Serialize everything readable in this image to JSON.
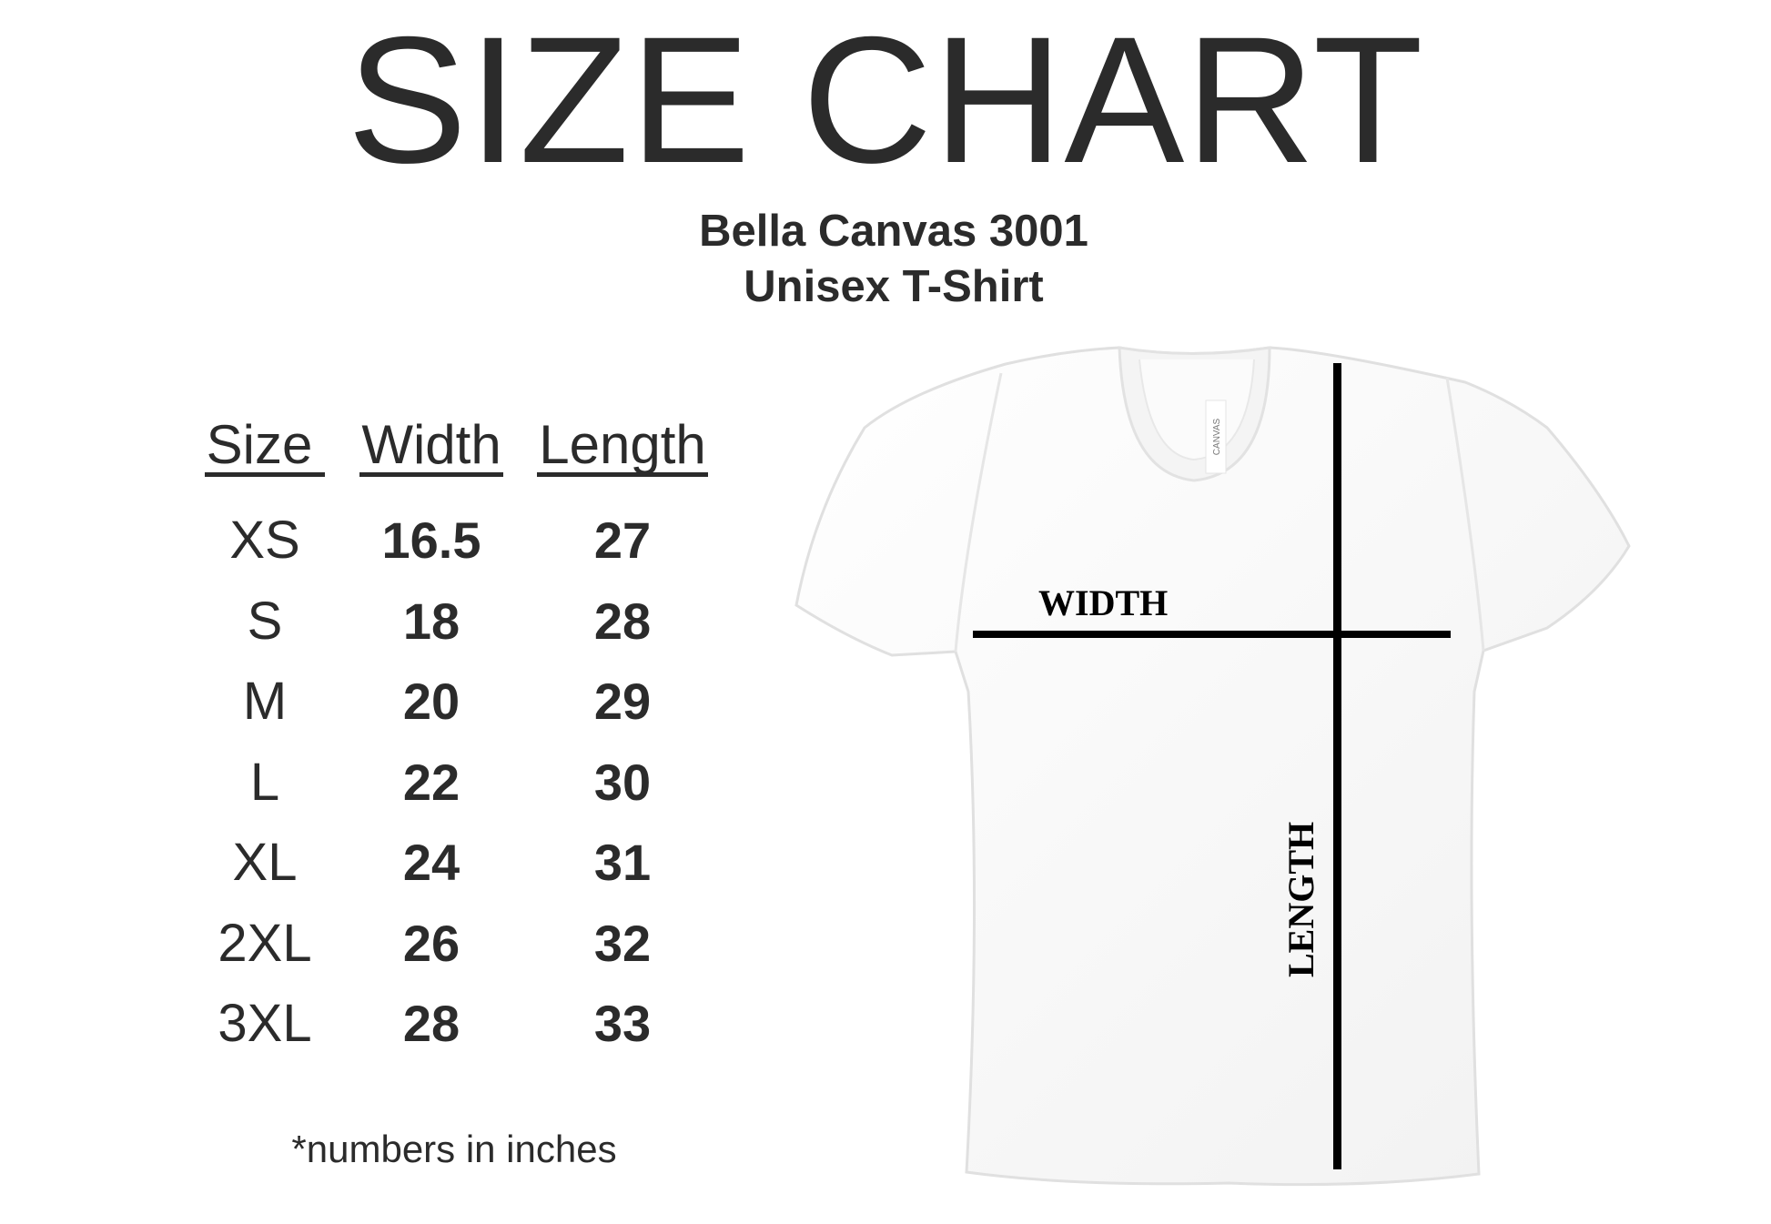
{
  "title": "SIZE CHART",
  "subtitle": {
    "line1": "Bella Canvas 3001",
    "line2": "Unisex T-Shirt"
  },
  "table": {
    "headers": [
      "Size",
      "Width",
      "Length"
    ],
    "rows": [
      [
        "XS",
        "16.5",
        "27"
      ],
      [
        "S",
        "18",
        "28"
      ],
      [
        "M",
        "20",
        "29"
      ],
      [
        "L",
        "22",
        "30"
      ],
      [
        "XL",
        "24",
        "31"
      ],
      [
        "2XL",
        "26",
        "32"
      ],
      [
        "3XL",
        "28",
        "33"
      ]
    ]
  },
  "footnote": "*numbers in inches",
  "diagram": {
    "width_label": "WIDTH",
    "length_label": "LENGTH",
    "tag_text": "CANVAS"
  },
  "colors": {
    "text": "#2b2b2b",
    "measure_line": "#000000"
  }
}
